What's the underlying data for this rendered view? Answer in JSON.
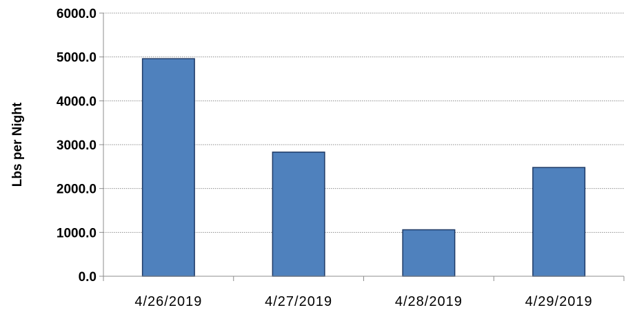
{
  "chart_data": {
    "type": "bar",
    "title": "",
    "xlabel": "",
    "ylabel": "Lbs per Night",
    "categories": [
      "4/26/2019",
      "4/27/2019",
      "4/28/2019",
      "4/29/2019"
    ],
    "values": [
      4960,
      2830,
      1060,
      2480
    ],
    "ylim": [
      0,
      6000
    ],
    "yticks": [
      0,
      1000,
      2000,
      3000,
      4000,
      5000,
      6000
    ],
    "ytick_labels": [
      "0.0",
      "1000.0",
      "2000.0",
      "3000.0",
      "4000.0",
      "5000.0",
      "6000.0"
    ],
    "grid": true,
    "legend": "none",
    "bar_color": "#4f81bd",
    "bar_edge_color": "#1f3a66"
  }
}
